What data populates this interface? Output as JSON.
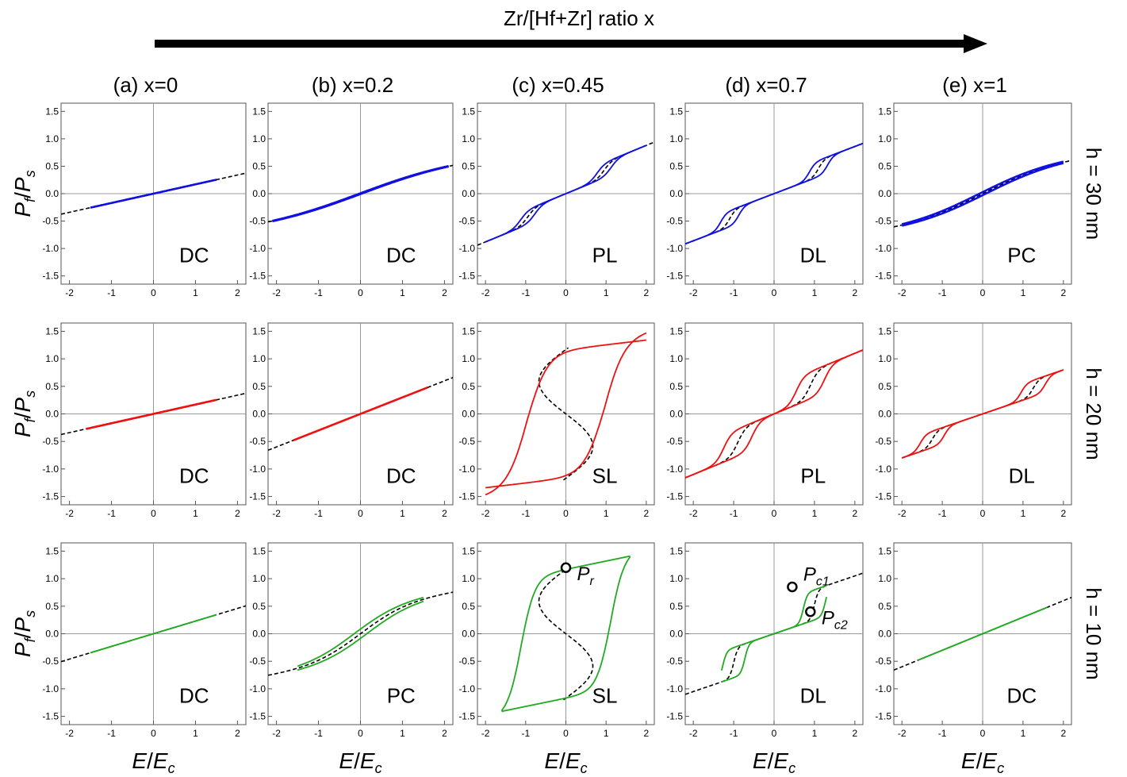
{
  "header": {
    "title": "Zr/[Hf+Zr] ratio x",
    "columns": [
      "(a) x=0",
      "(b) x=0.2",
      "(c) x=0.45",
      "(d) x=0.7",
      "(e) x=1"
    ],
    "rows": [
      "h = 30 nm",
      "h = 20 nm",
      "h = 10 nm"
    ],
    "ylabel_main": "P",
    "ylabel_sub1": "f",
    "ylabel_main2": "P",
    "ylabel_sub2": "s",
    "xlabel_main": "E",
    "xlabel_main2": "E",
    "xlabel_sub": "c"
  },
  "axes": {
    "xlim": [
      -2.2,
      2.2
    ],
    "ylim": [
      -1.65,
      1.65
    ],
    "xticks": [
      "-2",
      "-1",
      "0",
      "1",
      "2"
    ],
    "yticks": [
      "1.5",
      "1.0",
      "0.5",
      "0.0",
      "-0.5",
      "-1.0",
      "-1.5"
    ],
    "ytick_values": [
      1.5,
      1.0,
      0.5,
      0.0,
      -0.5,
      -1.0,
      -1.5
    ],
    "xtick_values": [
      -2,
      -1,
      0,
      1,
      2
    ]
  },
  "colors": {
    "h30": "#1010e0",
    "h20": "#ee1111",
    "h10": "#22aa22",
    "dashed": "#000000"
  },
  "chart_data": [
    {
      "row": 0,
      "col": 0,
      "type": "line",
      "label": "DC",
      "kind": "DC",
      "slope": 0.17,
      "dash_range": [
        -2.2,
        2.2
      ],
      "solid_range": [
        -1.5,
        1.5
      ]
    },
    {
      "row": 0,
      "col": 1,
      "type": "line",
      "label": "DC",
      "kind": "PC",
      "slope": 0.35,
      "hys": 0.03,
      "dash_range": [
        -2.2,
        2.2
      ],
      "solid_range": [
        -2.1,
        2.1
      ]
    },
    {
      "row": 0,
      "col": 2,
      "type": "line",
      "label": "PL",
      "kind": "DL",
      "slope": 0.3,
      "sw": 0.95,
      "w": 0.2,
      "step": 0.28,
      "spread": 0.35,
      "dash_range": [
        -2.2,
        2.2
      ],
      "solid_range": [
        -2.0,
        2.0
      ]
    },
    {
      "row": 0,
      "col": 3,
      "type": "line",
      "label": "DL",
      "kind": "DL",
      "slope": 0.28,
      "sw": 1.1,
      "w": 0.15,
      "step": 0.3,
      "spread": 0.45,
      "dash_range": [
        -2.2,
        2.2
      ],
      "solid_range": [
        -2.2,
        2.2
      ]
    },
    {
      "row": 0,
      "col": 4,
      "type": "line",
      "label": "PC",
      "kind": "PC",
      "slope": 0.45,
      "hys": 0.08,
      "dash_range": [
        -2.2,
        2.2
      ],
      "solid_range": [
        -2.0,
        2.0
      ]
    },
    {
      "row": 1,
      "col": 0,
      "type": "line",
      "label": "DC",
      "kind": "DC",
      "slope": 0.17,
      "dash_range": [
        -2.2,
        2.2
      ],
      "solid_range": [
        -1.6,
        1.5
      ]
    },
    {
      "row": 1,
      "col": 1,
      "type": "line",
      "label": "DC",
      "kind": "DC",
      "slope": 0.3,
      "dash_range": [
        -2.2,
        2.2
      ],
      "solid_range": [
        -1.6,
        1.6
      ]
    },
    {
      "row": 1,
      "col": 2,
      "type": "line",
      "label": "SL",
      "kind": "SL",
      "a": 1.3,
      "b": 0.085,
      "sw": 0.95,
      "k": 8,
      "dash_range": [
        -2.0,
        2.0
      ],
      "solid_range": [
        -2.0,
        2.0
      ]
    },
    {
      "row": 1,
      "col": 3,
      "type": "line",
      "label": "PL",
      "kind": "DL",
      "slope": 0.3,
      "sw": 0.9,
      "w": 0.2,
      "step": 0.5,
      "spread": 0.7,
      "dash_range": [
        -2.2,
        2.2
      ],
      "solid_range": [
        -2.2,
        2.2
      ]
    },
    {
      "row": 1,
      "col": 4,
      "type": "line",
      "label": "DL",
      "kind": "DL",
      "slope": 0.25,
      "sw": 1.25,
      "w": 0.15,
      "step": 0.3,
      "spread": 0.6,
      "dash_range": [
        -2.0,
        2.0
      ],
      "solid_range": [
        -2.0,
        2.0
      ]
    },
    {
      "row": 2,
      "col": 0,
      "type": "line",
      "label": "DC",
      "kind": "DC",
      "slope": 0.23,
      "dash_range": [
        -2.2,
        2.2
      ],
      "solid_range": [
        -1.5,
        1.5
      ]
    },
    {
      "row": 2,
      "col": 1,
      "type": "line",
      "label": "PC",
      "kind": "PC",
      "slope": 0.7,
      "hys": 0.15,
      "dash_range": [
        -2.2,
        2.2
      ],
      "solid_range": [
        -1.5,
        1.5
      ]
    },
    {
      "row": 2,
      "col": 2,
      "type": "line",
      "label": "SL",
      "kind": "SL",
      "a": 1.3,
      "b": 0.15,
      "sw": 1.1,
      "k": 12,
      "dash_range": [
        -1.6,
        1.6
      ],
      "solid_range": [
        -1.6,
        1.6
      ],
      "markers": [
        {
          "x": 0.0,
          "y": 1.2,
          "name": "P",
          "sub": "r"
        }
      ]
    },
    {
      "row": 2,
      "col": 3,
      "type": "line",
      "label": "DL",
      "kind": "DL",
      "slope": 0.25,
      "sw": 1.0,
      "w": 0.1,
      "step": 0.55,
      "spread": 0.55,
      "dash_range": [
        -2.2,
        2.2
      ],
      "solid_range": [
        -1.3,
        1.3
      ],
      "markers": [
        {
          "x": 0.45,
          "y": 0.85,
          "name": "P",
          "sub": "c1"
        },
        {
          "x": 0.9,
          "y": 0.4,
          "name": "P",
          "sub": "c2"
        }
      ]
    },
    {
      "row": 2,
      "col": 4,
      "type": "line",
      "label": "DC",
      "kind": "DC",
      "slope": 0.3,
      "dash_range": [
        -2.2,
        2.2
      ],
      "solid_range": [
        -1.6,
        1.6
      ]
    }
  ]
}
